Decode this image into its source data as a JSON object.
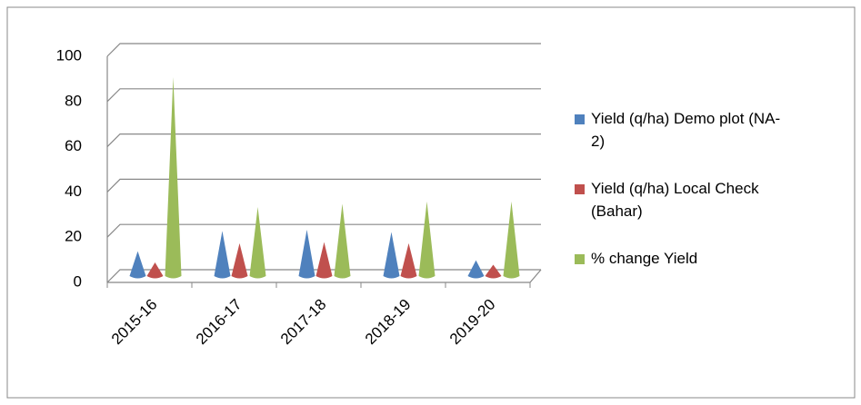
{
  "chart_data": {
    "type": "cone",
    "categories": [
      "2015-16",
      "2016-17",
      "2017-18",
      "2018-19",
      "2019-20"
    ],
    "series": [
      {
        "name": "Yield (q/ha) Demo plot (NA-2)",
        "color": "#4f81bd",
        "values": [
          11,
          20,
          20.5,
          19.5,
          7
        ]
      },
      {
        "name": "Yield (q/ha) Local Check (Bahar)",
        "color": "#c0504d",
        "values": [
          6,
          14.5,
          15,
          14.5,
          5
        ]
      },
      {
        "name": "% change Yield",
        "color": "#9bbb59",
        "values": [
          88,
          30.5,
          32,
          33,
          33
        ]
      }
    ],
    "ylim": [
      0,
      100
    ],
    "yticks": [
      0,
      20,
      40,
      60,
      80,
      100
    ],
    "grid": true,
    "legend": "right"
  }
}
